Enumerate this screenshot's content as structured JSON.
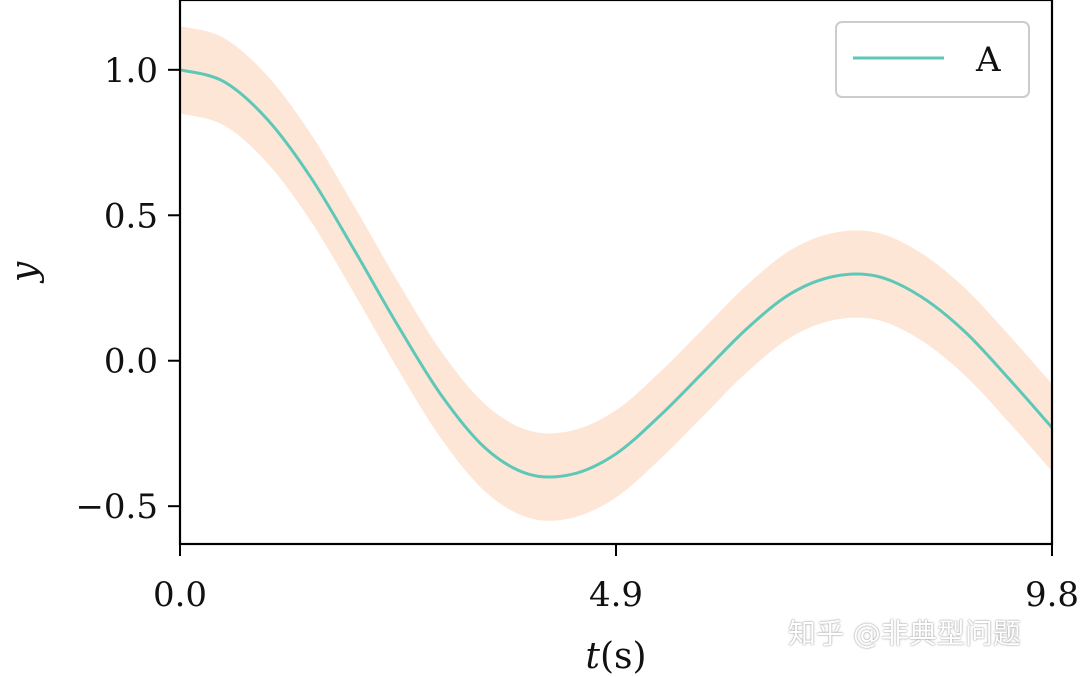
{
  "chart_data": {
    "type": "line",
    "title": "",
    "xlabel_italic": "t",
    "xlabel_unit": "(s)",
    "ylabel": "y",
    "xlim": [
      0.0,
      9.8
    ],
    "ylim": [
      -0.63,
      1.24
    ],
    "xticks": [
      {
        "value": 0.0,
        "label": "0.0"
      },
      {
        "value": 4.9,
        "label": "4.9"
      },
      {
        "value": 9.8,
        "label": "9.8"
      }
    ],
    "yticks": [
      {
        "value": 1.0,
        "label": "1.0"
      },
      {
        "value": 0.5,
        "label": "0.5"
      },
      {
        "value": 0.0,
        "label": "0.0"
      },
      {
        "value": -0.5,
        "label": "−0.5"
      }
    ],
    "legend_position": "top-right",
    "series": [
      {
        "name": "A",
        "color": "#5ec8b8",
        "band_color": "#fde6d6",
        "band_halfwidth": 0.15,
        "x": [
          0.0,
          0.49,
          0.98,
          1.47,
          1.96,
          2.45,
          2.94,
          3.43,
          3.92,
          4.41,
          4.9,
          5.39,
          5.88,
          6.37,
          6.86,
          7.35,
          7.84,
          8.33,
          8.82,
          9.31,
          9.8
        ],
        "y": [
          1.0,
          0.96,
          0.83,
          0.63,
          0.38,
          0.12,
          -0.12,
          -0.3,
          -0.39,
          -0.39,
          -0.32,
          -0.19,
          -0.04,
          0.11,
          0.23,
          0.29,
          0.29,
          0.22,
          0.1,
          -0.06,
          -0.23
        ]
      }
    ]
  },
  "watermark": "知乎 @非典型问题"
}
